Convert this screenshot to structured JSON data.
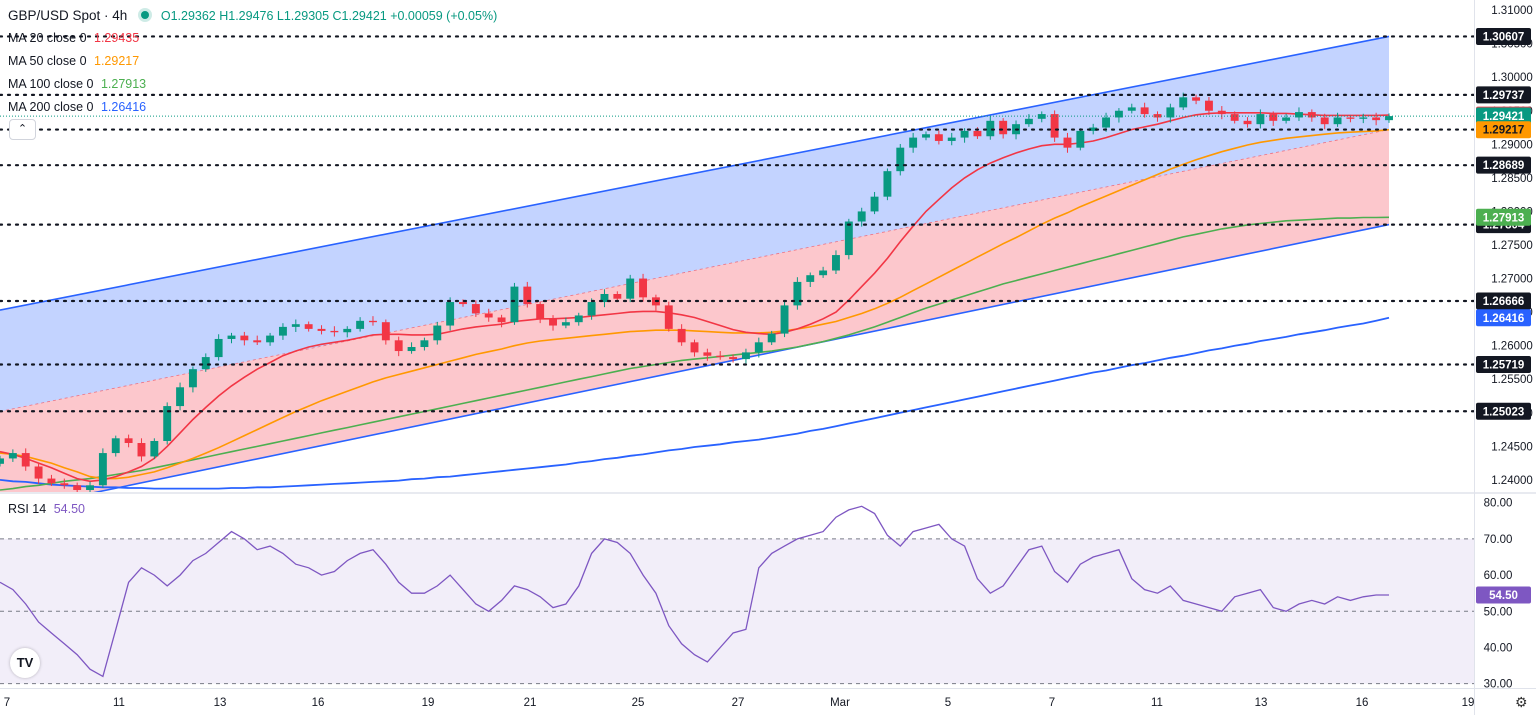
{
  "header": {
    "symbol": "GBP/USD Spot · 4h",
    "ohlc": "O1.29362 H1.29476 L1.29305 C1.29421 +0.00059 (+0.05%)",
    "indicators": [
      {
        "label": "MA 20 close 0",
        "value": "1.29435",
        "color": "#f23645"
      },
      {
        "label": "MA 50 close 0",
        "value": "1.29217",
        "color": "#ff9800"
      },
      {
        "label": "MA 100 close 0",
        "value": "1.27913",
        "color": "#4caf50"
      },
      {
        "label": "MA 200 close 0",
        "value": "1.26416",
        "color": "#2962ff"
      }
    ],
    "collapse_icon": "chevron-up-icon"
  },
  "rsi_header": {
    "label": "RSI 14",
    "value": "54.50",
    "color": "#7e57c2"
  },
  "price_axis_ticks": [
    "1.31000",
    "1.30500",
    "1.30000",
    "1.29500",
    "1.29000",
    "1.28500",
    "1.28000",
    "1.27500",
    "1.27000",
    "1.26500",
    "1.26000",
    "1.25500",
    "1.25000",
    "1.24500",
    "1.24000"
  ],
  "rsi_axis_ticks": [
    "80.00",
    "70.00",
    "60.00",
    "50.00",
    "40.00",
    "30.00"
  ],
  "date_ticks": [
    "7",
    "11",
    "13",
    "16",
    "19",
    "21",
    "25",
    "27",
    "Mar",
    "5",
    "7",
    "11",
    "13",
    "16",
    "19"
  ],
  "chart_data": {
    "type": "candlestick",
    "title": "GBP/USD Spot · 4h",
    "ylim": [
      1.2382,
      1.3115
    ],
    "rsi_ylim": [
      28.8,
      82.4
    ],
    "x": [
      0,
      2,
      4,
      6,
      8,
      10,
      12,
      14,
      16,
      18,
      20,
      22,
      24,
      26,
      28,
      30,
      32,
      34,
      36,
      38,
      40,
      42,
      44,
      46,
      48,
      50,
      52,
      54,
      56,
      58,
      60,
      62,
      64,
      66,
      68,
      70,
      72,
      74,
      76,
      78,
      80,
      82,
      84,
      86,
      88,
      90,
      92,
      94,
      96,
      98,
      100,
      102,
      104,
      106,
      108,
      110,
      112,
      114,
      116,
      118,
      120,
      122,
      124,
      126,
      128,
      130,
      132,
      134,
      136,
      138,
      140,
      142,
      144,
      146,
      148,
      150,
      152,
      154,
      156,
      158,
      160,
      162,
      164,
      166,
      168,
      170,
      172,
      174,
      176,
      178,
      180,
      182,
      184,
      186,
      188,
      190,
      192,
      194,
      196,
      198,
      200,
      202,
      204,
      206,
      208,
      210,
      212,
      214,
      216
    ],
    "close": [
      1.2432,
      1.244,
      1.242,
      1.2402,
      1.2395,
      1.2392,
      1.2385,
      1.2392,
      1.244,
      1.2462,
      1.2455,
      1.2435,
      1.2458,
      1.251,
      1.2538,
      1.2565,
      1.2583,
      1.261,
      1.2615,
      1.2608,
      1.2605,
      1.2615,
      1.2628,
      1.2632,
      1.2625,
      1.2622,
      1.262,
      1.2625,
      1.2637,
      1.2635,
      1.2608,
      1.2592,
      1.2598,
      1.2608,
      1.263,
      1.2665,
      1.2662,
      1.2648,
      1.2642,
      1.2635,
      1.2688,
      1.2662,
      1.264,
      1.263,
      1.2635,
      1.2645,
      1.2665,
      1.2677,
      1.267,
      1.27,
      1.2672,
      1.266,
      1.2625,
      1.2605,
      1.259,
      1.2585,
      1.2583,
      1.258,
      1.259,
      1.2605,
      1.2618,
      1.266,
      1.2695,
      1.2705,
      1.2712,
      1.2735,
      1.2785,
      1.28,
      1.2822,
      1.286,
      1.2895,
      1.291,
      1.2915,
      1.2905,
      1.291,
      1.292,
      1.2912,
      1.2935,
      1.2915,
      1.293,
      1.2938,
      1.2945,
      1.291,
      1.2895,
      1.292,
      1.2925,
      1.294,
      1.295,
      1.2955,
      1.2945,
      1.294,
      1.2955,
      1.297,
      1.2965,
      1.295,
      1.2945,
      1.2935,
      1.293,
      1.2945,
      1.2935,
      1.294,
      1.2948,
      1.294,
      1.293,
      1.294,
      1.2938,
      1.294,
      1.2936,
      1.2942
    ],
    "ma20": [
      1.2442,
      1.2438,
      1.2432,
      1.2425,
      1.2418,
      1.241,
      1.2402,
      1.2398,
      1.24,
      1.2405,
      1.2412,
      1.242,
      1.2432,
      1.245,
      1.247,
      1.249,
      1.2508,
      1.2525,
      1.254,
      1.2553,
      1.2565,
      1.2575,
      1.2585,
      1.2592,
      1.2598,
      1.2602,
      1.2605,
      1.2608,
      1.2612,
      1.2616,
      1.2617,
      1.2617,
      1.2616,
      1.2616,
      1.2617,
      1.2621,
      1.2625,
      1.2628,
      1.263,
      1.2632,
      1.2636,
      1.2638,
      1.264,
      1.264,
      1.2641,
      1.2642,
      1.2644,
      1.2646,
      1.2648,
      1.265,
      1.2651,
      1.2651,
      1.2649,
      1.2646,
      1.2642,
      1.2636,
      1.263,
      1.2624,
      1.262,
      1.2618,
      1.2617,
      1.262,
      1.2625,
      1.2632,
      1.264,
      1.265,
      1.2668,
      1.2688,
      1.2708,
      1.273,
      1.2755,
      1.2778,
      1.28,
      1.2818,
      1.2835,
      1.285,
      1.2862,
      1.2872,
      1.288,
      1.2887,
      1.2893,
      1.2898,
      1.29,
      1.29,
      1.2902,
      1.2905,
      1.291,
      1.2916,
      1.2922,
      1.2926,
      1.293,
      1.2935,
      1.294,
      1.2944,
      1.2946,
      1.2947,
      1.2947,
      1.2947,
      1.2947,
      1.2946,
      1.2946,
      1.2945,
      1.2944,
      1.2943,
      1.2943,
      1.2943,
      1.2943,
      1.2943,
      1.29435
    ],
    "ma50": [
      1.244,
      1.2438,
      1.2435,
      1.243,
      1.2425,
      1.2418,
      1.2412,
      1.2405,
      1.2402,
      1.2402,
      1.2404,
      1.2408,
      1.2412,
      1.2418,
      1.2425,
      1.2432,
      1.244,
      1.2448,
      1.2457,
      1.2466,
      1.2475,
      1.2484,
      1.2493,
      1.2502,
      1.251,
      1.2518,
      1.2525,
      1.2532,
      1.2539,
      1.2546,
      1.2552,
      1.2557,
      1.2562,
      1.2567,
      1.2572,
      1.2577,
      1.2582,
      1.2587,
      1.2591,
      1.2595,
      1.26,
      1.2604,
      1.2607,
      1.2609,
      1.2611,
      1.2613,
      1.2615,
      1.2617,
      1.2619,
      1.2621,
      1.2622,
      1.2623,
      1.2623,
      1.2623,
      1.2622,
      1.2621,
      1.262,
      1.2619,
      1.2619,
      1.2619,
      1.262,
      1.2622,
      1.2625,
      1.2628,
      1.2632,
      1.2636,
      1.2642,
      1.2648,
      1.2655,
      1.2663,
      1.2672,
      1.2682,
      1.2692,
      1.2702,
      1.2712,
      1.2722,
      1.2732,
      1.2742,
      1.2752,
      1.2761,
      1.2771,
      1.2781,
      1.279,
      1.2798,
      1.2807,
      1.2815,
      1.2823,
      1.2831,
      1.2839,
      1.2847,
      1.2855,
      1.2863,
      1.287,
      1.2877,
      1.2883,
      1.2889,
      1.2894,
      1.2899,
      1.2903,
      1.2906,
      1.2909,
      1.2911,
      1.2913,
      1.2915,
      1.2917,
      1.2918,
      1.2919,
      1.292,
      1.29217
    ],
    "ma100": [
      1.2385,
      1.2387,
      1.239,
      1.2392,
      1.2395,
      1.2398,
      1.24,
      1.2402,
      1.2405,
      1.2408,
      1.2411,
      1.2414,
      1.2418,
      1.2422,
      1.2426,
      1.243,
      1.2434,
      1.2438,
      1.2442,
      1.2446,
      1.245,
      1.2454,
      1.2458,
      1.2462,
      1.2466,
      1.247,
      1.2474,
      1.2478,
      1.2482,
      1.2486,
      1.249,
      1.2494,
      1.2498,
      1.2502,
      1.2506,
      1.251,
      1.2514,
      1.2518,
      1.2522,
      1.2526,
      1.253,
      1.2534,
      1.2538,
      1.2542,
      1.2546,
      1.255,
      1.2554,
      1.2558,
      1.2562,
      1.2566,
      1.2569,
      1.2572,
      1.2575,
      1.2578,
      1.258,
      1.2582,
      1.2584,
      1.2586,
      1.2588,
      1.259,
      1.2592,
      1.2595,
      1.2598,
      1.2602,
      1.2606,
      1.2611,
      1.2616,
      1.2622,
      1.2628,
      1.2635,
      1.2642,
      1.2649,
      1.2656,
      1.2662,
      1.2668,
      1.2674,
      1.268,
      1.2686,
      1.2692,
      1.2697,
      1.2702,
      1.2707,
      1.2712,
      1.2717,
      1.2722,
      1.2727,
      1.2732,
      1.2737,
      1.2742,
      1.2747,
      1.2752,
      1.2757,
      1.2762,
      1.2766,
      1.277,
      1.2774,
      1.2777,
      1.278,
      1.2782,
      1.2784,
      1.2786,
      1.2787,
      1.2788,
      1.2789,
      1.279,
      1.279,
      1.2791,
      1.2791,
      1.27913
    ],
    "ma200": [
      1.24,
      1.2398,
      1.2397,
      1.2395,
      1.2393,
      1.2392,
      1.2391,
      1.239,
      1.2389,
      1.2389,
      1.2388,
      1.2388,
      1.2387,
      1.2387,
      1.2387,
      1.2387,
      1.2387,
      1.2387,
      1.2388,
      1.2388,
      1.2389,
      1.2389,
      1.239,
      1.2391,
      1.2392,
      1.2393,
      1.2394,
      1.2395,
      1.2396,
      1.2397,
      1.2398,
      1.2399,
      1.2401,
      1.2402,
      1.2404,
      1.2405,
      1.2407,
      1.2409,
      1.2411,
      1.2413,
      1.2415,
      1.2417,
      1.2419,
      1.2421,
      1.2423,
      1.2426,
      1.2428,
      1.2431,
      1.2433,
      1.2436,
      1.2438,
      1.2441,
      1.2444,
      1.2446,
      1.2449,
      1.2451,
      1.2453,
      1.2456,
      1.2458,
      1.246,
      1.2463,
      1.2466,
      1.2469,
      1.2473,
      1.2476,
      1.248,
      1.2484,
      1.2488,
      1.2492,
      1.2496,
      1.25,
      1.2504,
      1.2508,
      1.2512,
      1.2516,
      1.252,
      1.2524,
      1.2528,
      1.2532,
      1.2536,
      1.254,
      1.2544,
      1.2548,
      1.2552,
      1.2556,
      1.256,
      1.2563,
      1.2567,
      1.2571,
      1.2574,
      1.2578,
      1.2582,
      1.2585,
      1.2589,
      1.2593,
      1.2596,
      1.26,
      1.2603,
      1.2607,
      1.261,
      1.2613,
      1.2617,
      1.262,
      1.2623,
      1.2627,
      1.263,
      1.2633,
      1.2637,
      1.26416
    ],
    "rsi": [
      58,
      56,
      52,
      47,
      44,
      41,
      38,
      34,
      32,
      45,
      58,
      62,
      60,
      57,
      60,
      64,
      66,
      69,
      72,
      70,
      67,
      68,
      66,
      63,
      62,
      60,
      61,
      64,
      66,
      67,
      63,
      58,
      55,
      55,
      57,
      60,
      56,
      52,
      50,
      53,
      57,
      56,
      54,
      51,
      52,
      57,
      66,
      70,
      69,
      66,
      60,
      55,
      46,
      41,
      38,
      36,
      40,
      44,
      45,
      62,
      66,
      68,
      70,
      71,
      72,
      76,
      78,
      79,
      77,
      71,
      68,
      72,
      73,
      74,
      70,
      68,
      59,
      55,
      57,
      62,
      67,
      68,
      61,
      58,
      63,
      65,
      66,
      67,
      59,
      56,
      55,
      57,
      53,
      52,
      51,
      50,
      54,
      55,
      56,
      51,
      50,
      52,
      53,
      52,
      54,
      53,
      54,
      54.5,
      54.5
    ],
    "channel": {
      "lower_start": 1.2352,
      "lower_end": 1.27804,
      "mid_start": 1.2502,
      "mid_end": 1.2922,
      "upper_start": 1.2653,
      "upper_end": 1.30607
    },
    "levels": [
      {
        "value": 1.30607,
        "label": "1.30607"
      },
      {
        "value": 1.29737,
        "label": "1.29737"
      },
      {
        "value": 1.2922,
        "label": "1.29220"
      },
      {
        "value": 1.28689,
        "label": "1.28689"
      },
      {
        "value": 1.27804,
        "label": "1.27804"
      },
      {
        "value": 1.26666,
        "label": "1.26666"
      },
      {
        "value": 1.25719,
        "label": "1.25719"
      },
      {
        "value": 1.25023,
        "label": "1.25023"
      }
    ],
    "badges": [
      {
        "value": 1.29435,
        "label": "1.29435",
        "color": "#f23645"
      },
      {
        "value": 1.29421,
        "label": "1.29421",
        "color": "#089981"
      },
      {
        "value": 1.29217,
        "label": "1.29217",
        "color": "#ff9800"
      },
      {
        "value": 1.27913,
        "label": "1.27913",
        "color": "#4caf50"
      },
      {
        "value": 1.26416,
        "label": "1.26416",
        "color": "#2962ff"
      }
    ],
    "rsi_badge": {
      "value": 54.5,
      "label": "54.50"
    },
    "colors": {
      "up": "#089981",
      "down": "#f23645",
      "channel_top_fill": "#2962ff",
      "channel_bottom_fill": "#f7525f",
      "rsi": "#7e57c2"
    }
  }
}
